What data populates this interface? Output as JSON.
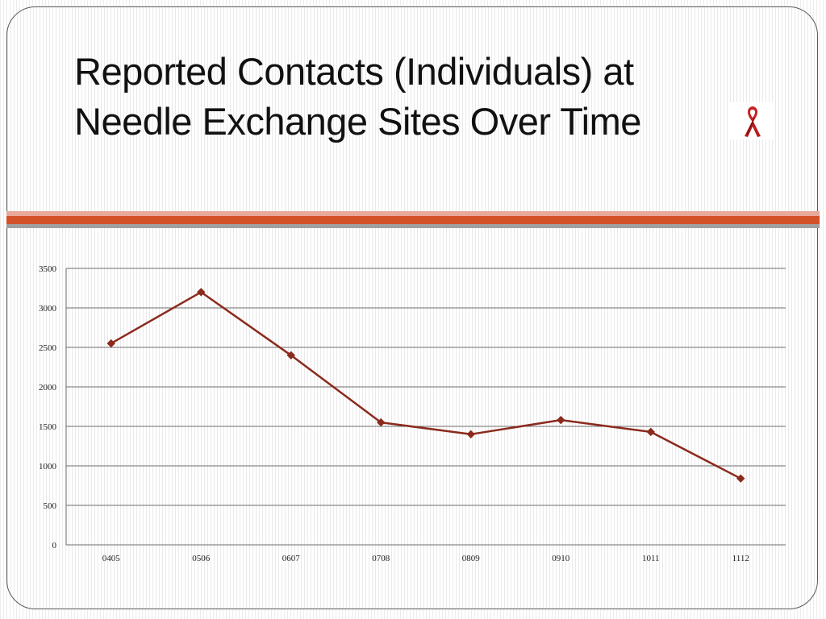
{
  "slide": {
    "title_lines": [
      "Reported Contacts (Individuals) at",
      "Needle Exchange Sites Over Time"
    ],
    "ribbon_icon": "red-awareness-ribbon-icon",
    "accent_colors": {
      "bar_light": "#e8a99a",
      "bar_main": "#d4522a",
      "bar_gray": "#a0a0a0"
    }
  },
  "chart_data": {
    "type": "line",
    "title": "",
    "xlabel": "",
    "ylabel": "",
    "categories": [
      "0405",
      "0506",
      "0607",
      "0708",
      "0809",
      "0910",
      "1011",
      "1112"
    ],
    "series": [
      {
        "values": [
          2550,
          3200,
          2400,
          1550,
          1400,
          1580,
          1430,
          840
        ],
        "color": "#8b2a1e",
        "marker": "diamond"
      }
    ],
    "ylim": [
      0,
      3500
    ],
    "yticks": [
      0,
      500,
      1000,
      1500,
      2000,
      2500,
      3000,
      3500
    ],
    "grid": true,
    "legend": "none"
  }
}
